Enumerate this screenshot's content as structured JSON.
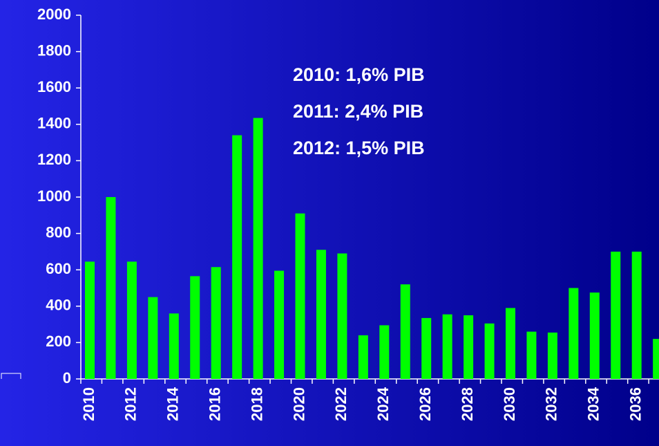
{
  "chart_data": {
    "type": "bar",
    "categories": [
      "2010",
      null,
      "2012",
      null,
      "2014",
      null,
      "2016",
      null,
      "2018",
      null,
      "2020",
      null,
      "2022",
      null,
      "2024",
      null,
      "2026",
      null,
      "2028",
      null,
      "2030",
      null,
      "2032",
      null,
      "2034",
      null,
      "2036",
      null
    ],
    "values": [
      645,
      1000,
      645,
      450,
      360,
      565,
      615,
      1340,
      1435,
      595,
      910,
      710,
      690,
      240,
      295,
      520,
      335,
      355,
      350,
      305,
      390,
      260,
      255,
      500,
      475,
      700,
      700,
      220
    ],
    "color": "#00ff00",
    "ylim": [
      0,
      2000
    ],
    "yticks": [
      0,
      200,
      400,
      600,
      800,
      1000,
      1200,
      1400,
      1600,
      1800,
      2000
    ],
    "annotations": [
      "2010:  1,6% PIB",
      "2011:  2,4% PIB",
      "2012:  1,5% PIB"
    ]
  }
}
